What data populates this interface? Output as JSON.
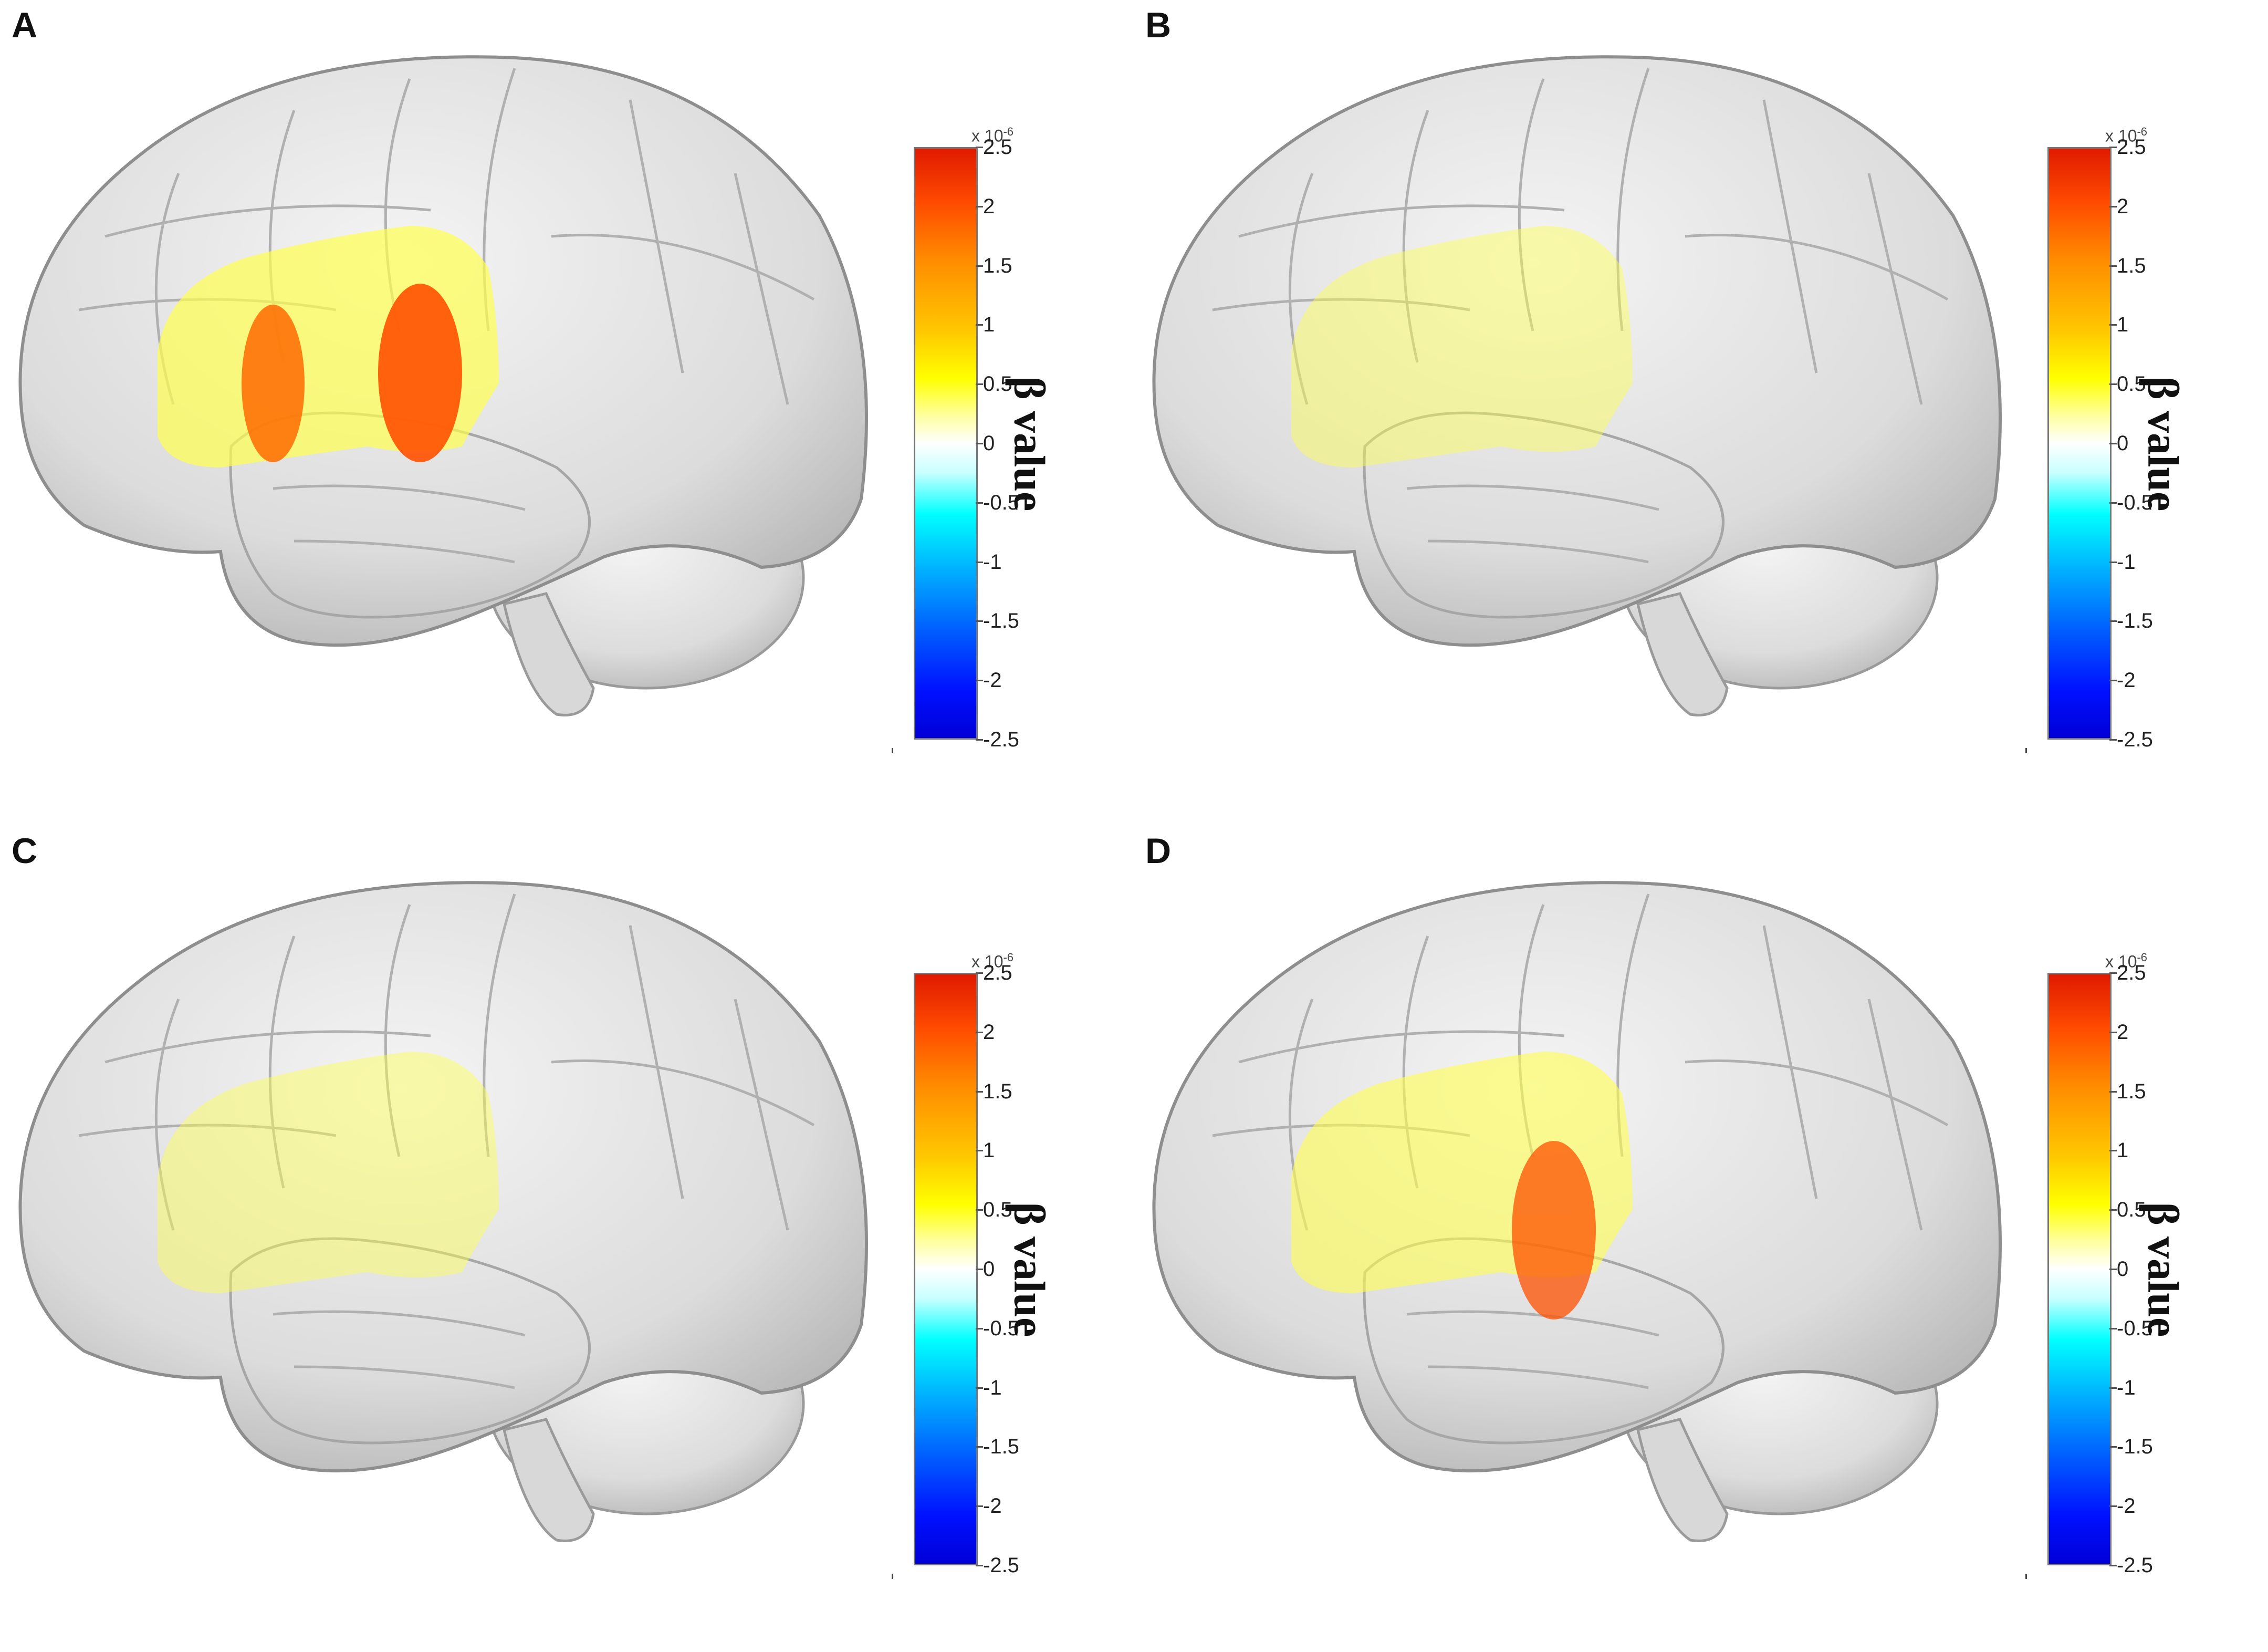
{
  "panels": [
    {
      "letter": "A",
      "activation": "strong"
    },
    {
      "letter": "B",
      "activation": "weak"
    },
    {
      "letter": "C",
      "activation": "weak"
    },
    {
      "letter": "D",
      "activation": "medium"
    }
  ],
  "colorbar": {
    "exponent_base": "x 10",
    "exponent_power": "-6",
    "ticks": [
      "2.5",
      "2",
      "1.5",
      "1",
      "0.5",
      "0",
      "-0.5",
      "-1",
      "-1.5",
      "-2",
      "-2.5"
    ],
    "range": [
      -2.5,
      2.5
    ],
    "label": "β value",
    "colors": [
      "#e01a00",
      "#ff8c00",
      "#ffff00",
      "#ffffff",
      "#00ffff",
      "#0064ff",
      "#0000d8"
    ]
  },
  "brain_color": "#e4e4e4"
}
